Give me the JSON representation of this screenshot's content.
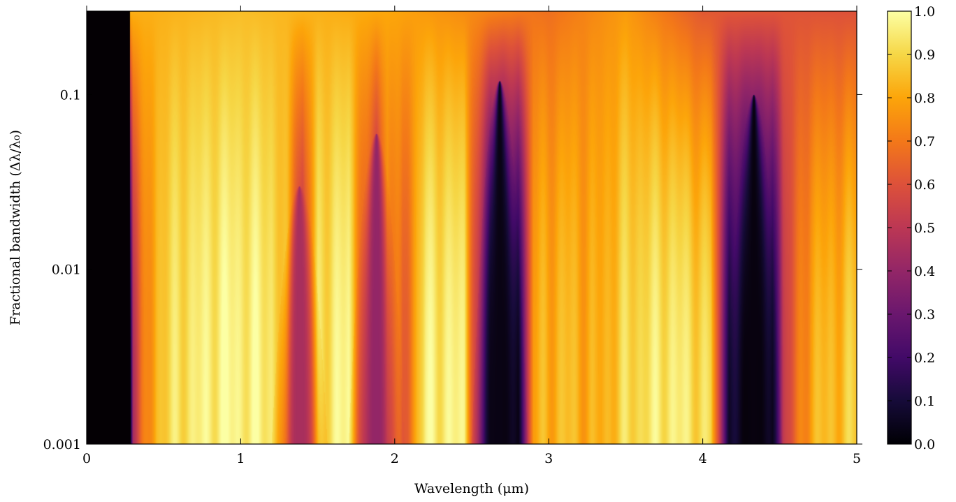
{
  "chart_data": {
    "type": "heatmap",
    "title": "",
    "xlabel": "Wavelength (μm)",
    "ylabel": "Fractional bandwidth (Δλ/λ₀)",
    "xlim": [
      0,
      5
    ],
    "ylim": [
      0.001,
      0.3
    ],
    "yscale": "log",
    "colormap": "inferno",
    "x_ticks": [
      {
        "value": 0,
        "label": "0"
      },
      {
        "value": 1,
        "label": "1"
      },
      {
        "value": 2,
        "label": "2"
      },
      {
        "value": 3,
        "label": "3"
      },
      {
        "value": 4,
        "label": "4"
      },
      {
        "value": 5,
        "label": "5"
      }
    ],
    "y_ticks": [
      {
        "value": 0.001,
        "label": "0.001"
      },
      {
        "value": 0.01,
        "label": "0.01"
      },
      {
        "value": 0.1,
        "label": "0.1"
      }
    ],
    "colorbar": {
      "range": [
        0.0,
        1.0
      ],
      "ticks": [
        {
          "value": 0.0,
          "label": "0.0"
        },
        {
          "value": 0.1,
          "label": "0.1"
        },
        {
          "value": 0.2,
          "label": "0.2"
        },
        {
          "value": 0.3,
          "label": "0.3"
        },
        {
          "value": 0.4,
          "label": "0.4"
        },
        {
          "value": 0.5,
          "label": "0.5"
        },
        {
          "value": 0.6,
          "label": "0.6"
        },
        {
          "value": 0.7,
          "label": "0.7"
        },
        {
          "value": 0.8,
          "label": "0.8"
        },
        {
          "value": 0.9,
          "label": "0.9"
        },
        {
          "value": 1.0,
          "label": "1.0"
        }
      ]
    },
    "profile_at_min_bandwidth": {
      "wavelength": [
        0.0,
        0.28,
        0.3,
        0.45,
        0.6,
        0.9,
        1.2,
        1.3,
        1.4,
        1.5,
        1.7,
        1.8,
        1.88,
        1.95,
        2.05,
        2.2,
        2.45,
        2.55,
        2.62,
        2.7,
        2.8,
        2.9,
        3.1,
        3.3,
        3.5,
        3.8,
        4.05,
        4.17,
        4.3,
        4.45,
        4.52,
        4.7,
        5.0
      ],
      "value": [
        0.0,
        0.0,
        0.5,
        0.85,
        0.93,
        0.98,
        0.95,
        0.8,
        0.45,
        0.92,
        0.98,
        0.6,
        0.4,
        0.75,
        0.6,
        0.96,
        0.96,
        0.4,
        0.05,
        0.02,
        0.05,
        0.8,
        0.85,
        0.8,
        0.9,
        0.96,
        0.9,
        0.1,
        0.01,
        0.05,
        0.5,
        0.82,
        0.88
      ]
    },
    "dips": [
      {
        "center": 2.68,
        "max_bandwidth": 0.12,
        "min_value": 0.03
      },
      {
        "center": 4.33,
        "max_bandwidth": 0.1,
        "min_value": 0.02
      },
      {
        "center": 1.38,
        "max_bandwidth": 0.03,
        "min_value": 0.45
      },
      {
        "center": 1.88,
        "max_bandwidth": 0.06,
        "min_value": 0.4
      }
    ],
    "broad_bandwidth_values": {
      "wavelength": [
        0.4,
        1.0,
        2.0,
        3.0,
        3.5,
        4.0,
        5.0
      ],
      "value_at_0.3": [
        0.82,
        0.85,
        0.8,
        0.68,
        0.78,
        0.62,
        0.6
      ]
    }
  }
}
